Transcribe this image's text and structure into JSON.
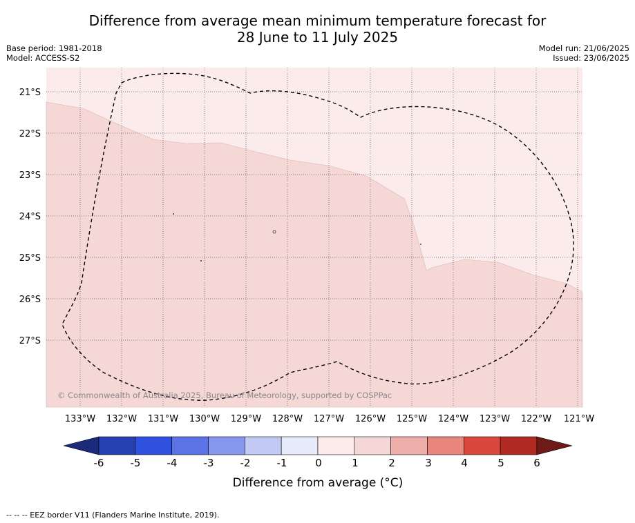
{
  "header": {
    "title_line1": "Difference from average mean minimum temperature forecast for",
    "title_line2": "28 June to 11 July 2025",
    "base_period": "Base period: 1981-2018",
    "model": "Model: ACCESS-S2",
    "model_run": "Model run: 21/06/2025",
    "issued": "Issued: 23/06/2025"
  },
  "map": {
    "lon_labels": [
      "133°W",
      "132°W",
      "131°W",
      "130°W",
      "129°W",
      "128°W",
      "127°W",
      "126°W",
      "125°W",
      "124°W",
      "123°W",
      "122°W",
      "121°W"
    ],
    "lat_labels": [
      "21°S",
      "22°S",
      "23°S",
      "24°S",
      "25°S",
      "26°S",
      "27°S"
    ],
    "copyright": "© Commonwealth of Australia 2025, Bureau of Meteorology, supported by COSPPac",
    "fill_colors": {
      "band_0_1": "#fbeceb",
      "band_1_2": "#f5d7d6"
    }
  },
  "colorbar": {
    "ticks": [
      "-6",
      "-5",
      "-4",
      "-3",
      "-2",
      "-1",
      "0",
      "1",
      "2",
      "3",
      "4",
      "5",
      "6"
    ],
    "label": "Difference from average (°C)",
    "colors": [
      "#1b2a7a",
      "#2741b5",
      "#3050e0",
      "#5b73e6",
      "#8797ed",
      "#c2c9f5",
      "#e8ebfa",
      "#fbeceb",
      "#f5d7d6",
      "#eeaea9",
      "#e8857d",
      "#d9483e",
      "#b02a22",
      "#6e1a16"
    ]
  },
  "footer": {
    "legend": "-- -- -- EEZ border V11 (Flanders Marine Institute, 2019)."
  }
}
